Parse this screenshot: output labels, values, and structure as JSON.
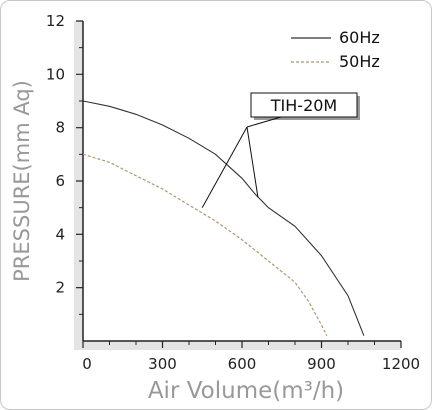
{
  "chart_data": {
    "type": "line",
    "xlabel": "Air Volume(m³/h)",
    "ylabel": "PRESSURE(mm Aq)",
    "xlim": [
      0,
      1200
    ],
    "ylim": [
      0,
      12
    ],
    "xticks": [
      0,
      300,
      600,
      900,
      1200
    ],
    "xtick_labels": [
      "0",
      "300",
      "600",
      "900",
      "1200"
    ],
    "yticks": [
      2,
      4,
      6,
      8,
      10,
      12
    ],
    "ytick_labels": [
      "2",
      "4",
      "6",
      "8",
      "10",
      "12"
    ],
    "grid": false,
    "legend_position": "top-right",
    "colors": {
      "series_60hz": "#333333",
      "series_50hz": "#b09870",
      "axis": "#222222",
      "axis_title": "#999999"
    },
    "series": [
      {
        "name": "60Hz",
        "style": "solid",
        "x": [
          0,
          100,
          200,
          300,
          400,
          500,
          600,
          650,
          700,
          800,
          900,
          1000,
          1060
        ],
        "y": [
          9.0,
          8.8,
          8.5,
          8.1,
          7.6,
          7.0,
          6.1,
          5.5,
          5.0,
          4.3,
          3.2,
          1.7,
          0.2
        ]
      },
      {
        "name": "50Hz",
        "style": "dashed",
        "x": [
          0,
          100,
          200,
          300,
          400,
          500,
          600,
          700,
          800,
          850,
          900,
          920
        ],
        "y": [
          7.0,
          6.7,
          6.2,
          5.7,
          5.1,
          4.5,
          3.8,
          3.0,
          2.2,
          1.5,
          0.6,
          0.2
        ]
      }
    ],
    "annotations": [
      {
        "text": "TIH-20M",
        "points_to": [
          [
            450,
            5.0
          ],
          [
            660,
            5.4
          ]
        ]
      }
    ]
  }
}
